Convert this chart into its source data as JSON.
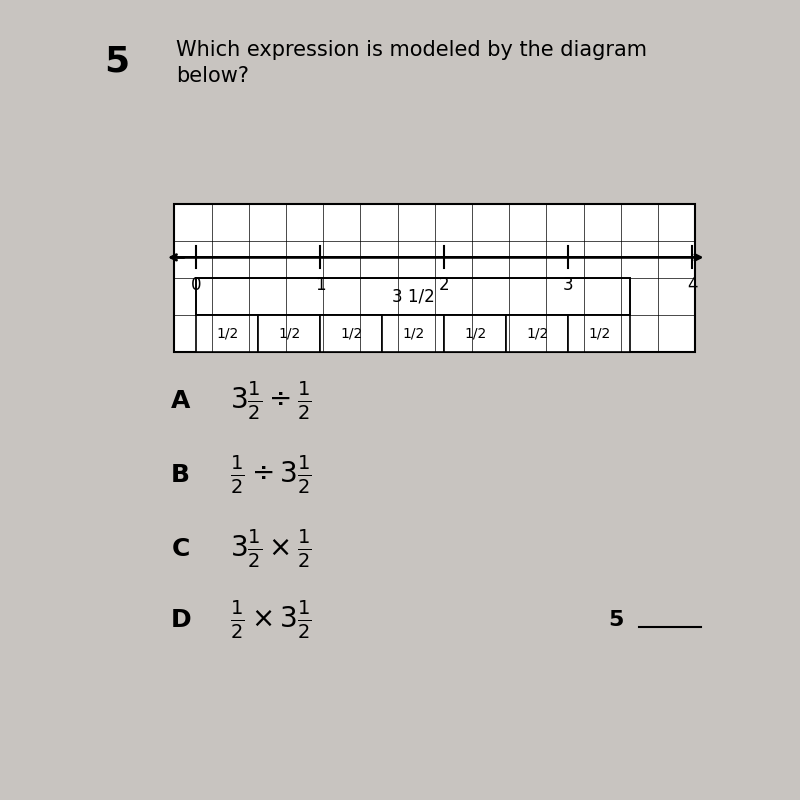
{
  "bg_color": "#c8c4c0",
  "question_number": "5",
  "question_line1": "Which expression is modeled by the diagram",
  "question_line2": "below?",
  "number_line_labels": [
    0,
    1,
    2,
    3,
    4
  ],
  "bar_label": "3 1/2",
  "cells_label": "1/2",
  "num_cells": 7,
  "answer_labels": [
    "A",
    "B",
    "C",
    "D"
  ],
  "title_fontsize": 18,
  "ans_label_fontsize": 20,
  "ans_expr_fontsize": 22,
  "question_num_fontsize": 26,
  "num_grid_cols": 14,
  "num_grid_rows": 4
}
